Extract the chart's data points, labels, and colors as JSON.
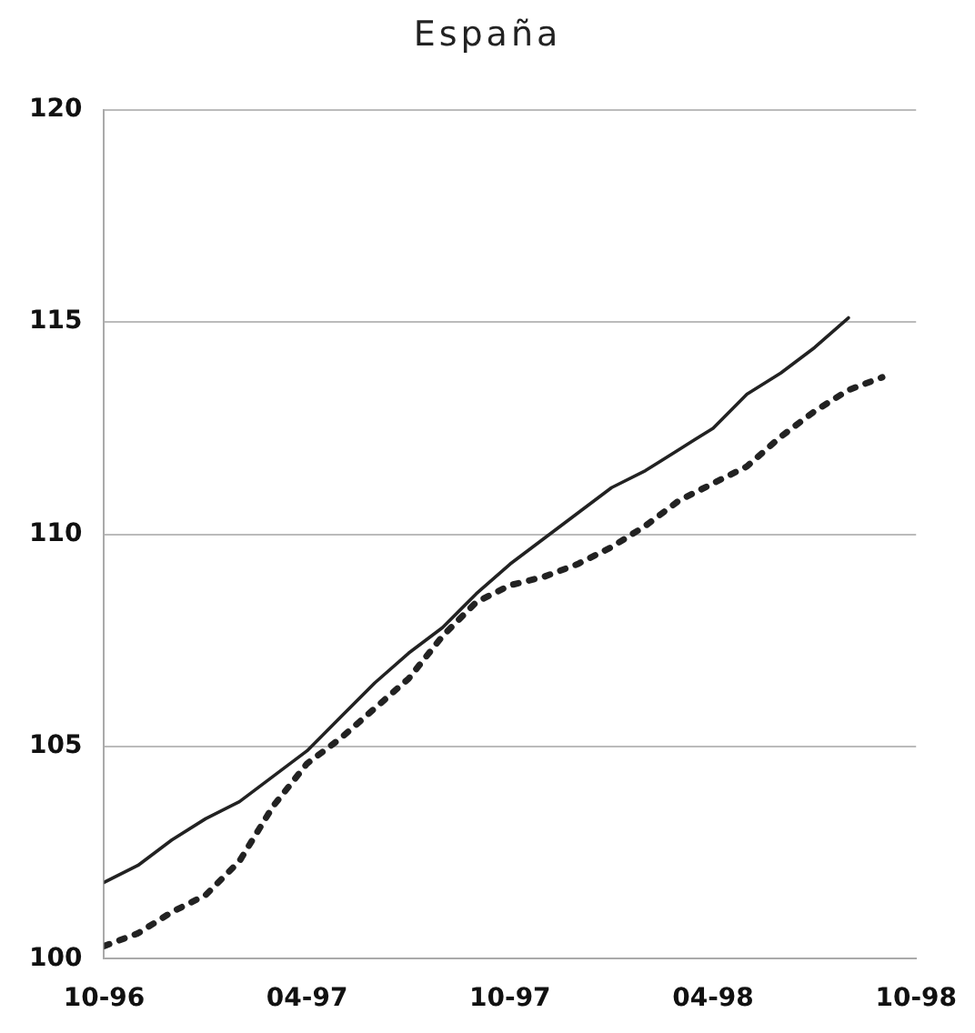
{
  "chart_data": {
    "type": "line",
    "title": "España",
    "x": [
      "1996-10",
      "1996-11",
      "1996-12",
      "1997-01",
      "1997-02",
      "1997-03",
      "1997-04",
      "1997-05",
      "1997-06",
      "1997-07",
      "1997-08",
      "1997-09",
      "1997-10",
      "1997-11",
      "1997-12",
      "1998-01",
      "1998-02",
      "1998-03",
      "1998-04",
      "1998-05",
      "1998-06",
      "1998-07",
      "1998-08",
      "1998-09"
    ],
    "series": [
      {
        "color": "#222222",
        "line_style": "solid",
        "values": [
          101.8,
          102.2,
          102.8,
          103.3,
          103.7,
          104.3,
          104.9,
          105.7,
          106.5,
          107.2,
          107.8,
          108.6,
          109.3,
          109.9,
          110.5,
          111.1,
          111.5,
          112.0,
          112.5,
          113.3,
          113.8,
          114.4,
          115.1,
          null
        ]
      },
      {
        "color": "#222222",
        "line_style": "dotted",
        "values": [
          100.3,
          100.6,
          101.1,
          101.5,
          102.3,
          103.6,
          104.6,
          105.2,
          105.9,
          106.6,
          107.6,
          108.4,
          108.8,
          109.0,
          109.3,
          109.7,
          110.2,
          110.8,
          111.2,
          111.6,
          112.3,
          112.9,
          113.4,
          113.7
        ]
      }
    ],
    "xlim": [
      "1996-10",
      "1998-10"
    ],
    "xticks": [
      {
        "value": "1996-10",
        "label": "10-96"
      },
      {
        "value": "1997-04",
        "label": "04-97"
      },
      {
        "value": "1997-10",
        "label": "10-97"
      },
      {
        "value": "1998-04",
        "label": "04-98"
      },
      {
        "value": "1998-10",
        "label": "10-98"
      }
    ],
    "ylim": [
      100,
      120
    ],
    "yticks": [
      100,
      105,
      110,
      115,
      120
    ],
    "grid": "y",
    "legend": false,
    "marker": "none"
  }
}
